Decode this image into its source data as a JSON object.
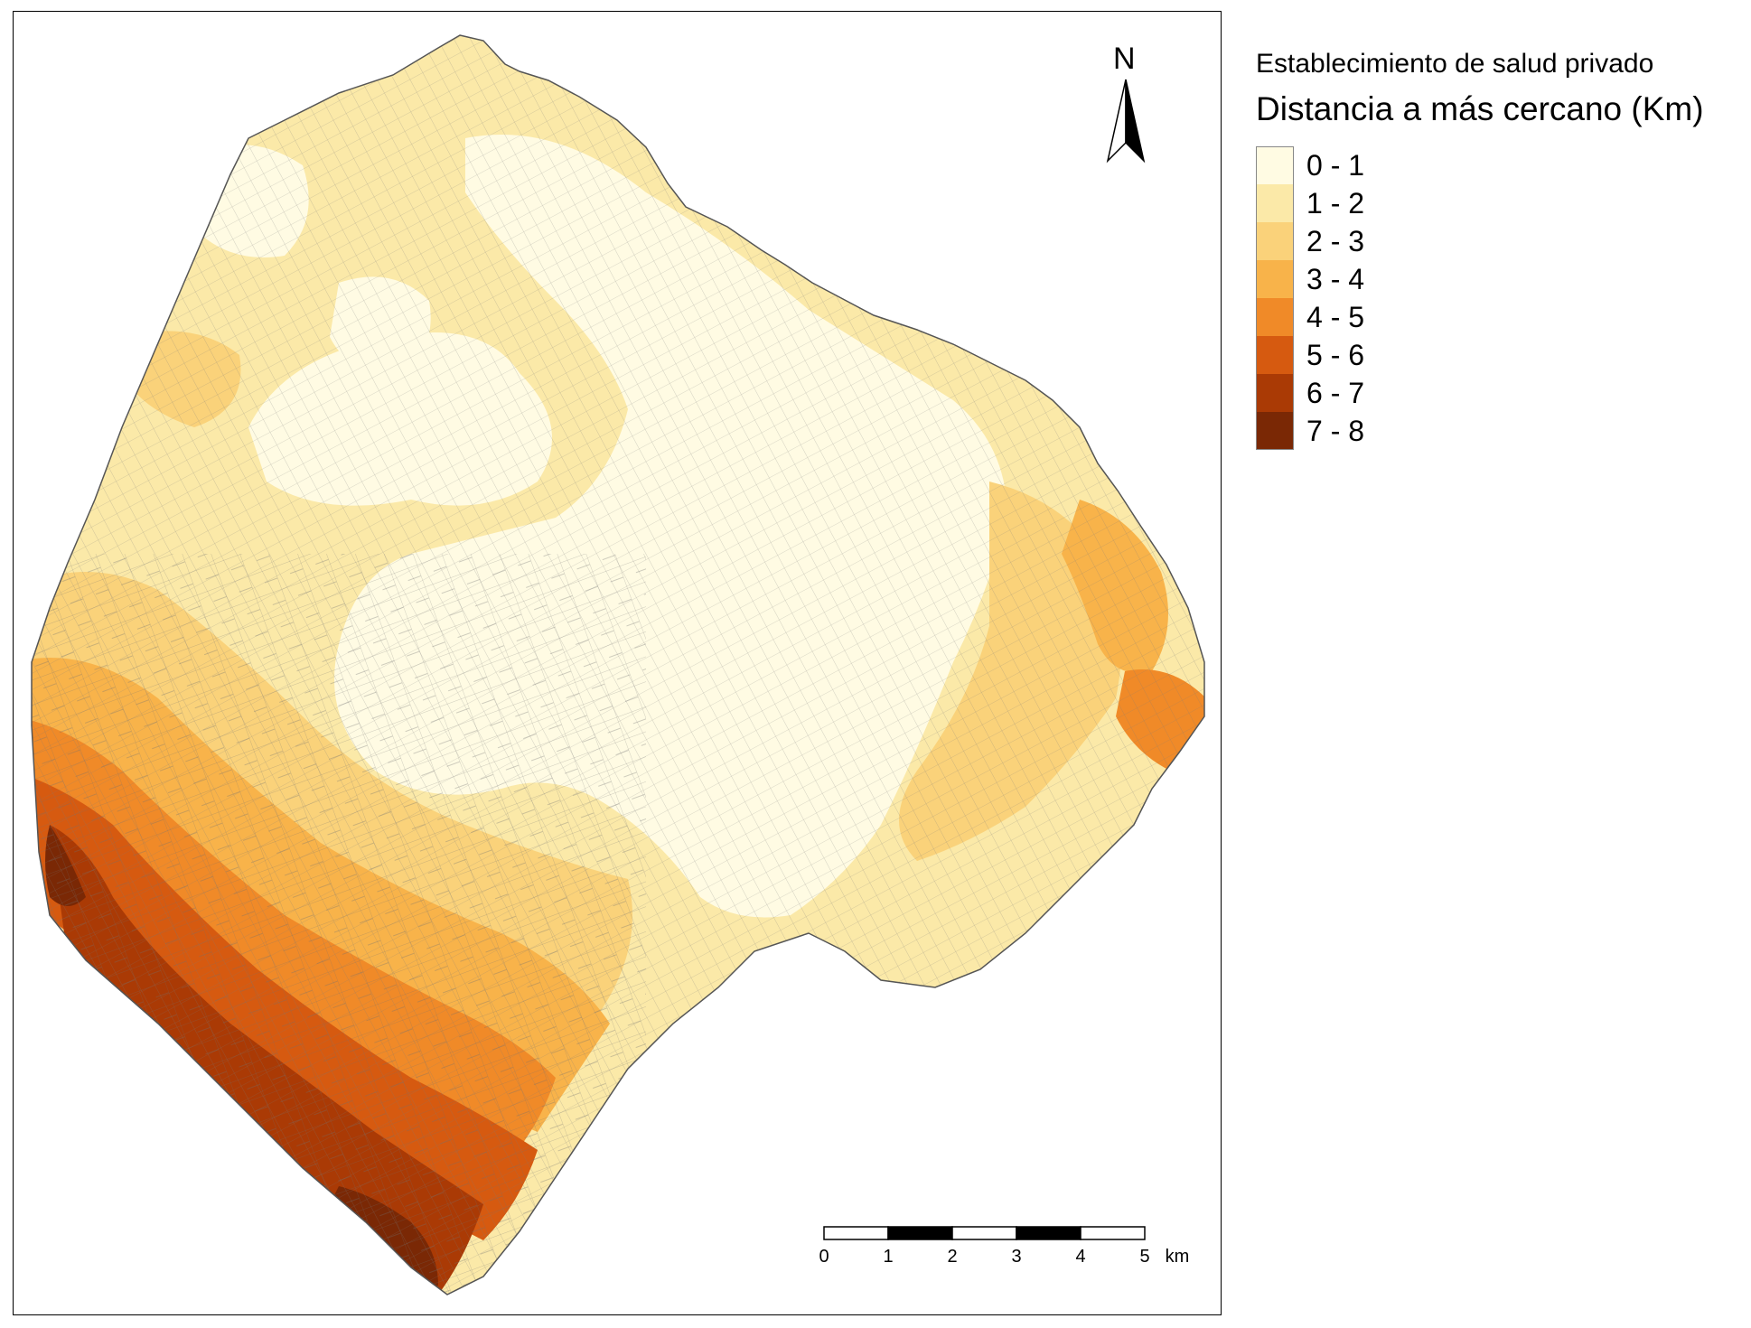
{
  "legend": {
    "subtitle": "Establecimiento de salud privado",
    "title": "Distancia a más cercano (Km)",
    "classes": [
      {
        "label": "0 - 1",
        "color": "#fffbe3"
      },
      {
        "label": "1 - 2",
        "color": "#fbe9a8"
      },
      {
        "label": "2 - 3",
        "color": "#fad27a"
      },
      {
        "label": "3 - 4",
        "color": "#f8b34a"
      },
      {
        "label": "4 - 5",
        "color": "#f08a28"
      },
      {
        "label": "5 - 6",
        "color": "#d65a10"
      },
      {
        "label": "6 - 7",
        "color": "#aa3a05"
      },
      {
        "label": "7 - 8",
        "color": "#7a2805"
      }
    ]
  },
  "north_arrow": {
    "label": "N",
    "icon": "north-arrow-icon"
  },
  "scale_bar": {
    "labels": [
      "0",
      "1",
      "2",
      "3",
      "4",
      "5"
    ],
    "unit": "km"
  }
}
